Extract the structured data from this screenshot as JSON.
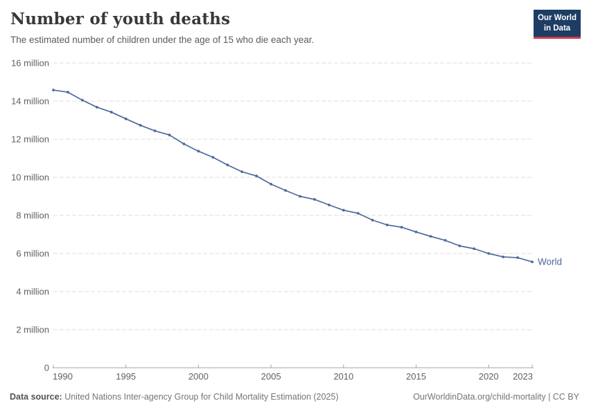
{
  "header": {
    "title": "Number of youth deaths",
    "subtitle": "The estimated number of children under the age of 15 who die each year.",
    "logo": {
      "line1": "Our World",
      "line2": "in Data",
      "bg_color": "#1d3d63",
      "accent_color": "#d13b4b"
    }
  },
  "chart_data": {
    "type": "line",
    "title": "Number of youth deaths",
    "xlabel": "",
    "ylabel": "",
    "unit": "million deaths per year",
    "x": [
      1990,
      1991,
      1992,
      1993,
      1994,
      1995,
      1996,
      1997,
      1998,
      1999,
      2000,
      2001,
      2002,
      2003,
      2004,
      2005,
      2006,
      2007,
      2008,
      2009,
      2010,
      2011,
      2012,
      2013,
      2014,
      2015,
      2016,
      2017,
      2018,
      2019,
      2020,
      2021,
      2022,
      2023
    ],
    "series": [
      {
        "name": "World",
        "color": "#4C6A9C",
        "values_millions": [
          14.58,
          14.47,
          14.05,
          13.68,
          13.42,
          13.07,
          12.73,
          12.44,
          12.22,
          11.75,
          11.37,
          11.05,
          10.65,
          10.29,
          10.07,
          9.64,
          9.31,
          9.0,
          8.84,
          8.55,
          8.27,
          8.11,
          7.75,
          7.5,
          7.38,
          7.13,
          6.9,
          6.69,
          6.4,
          6.25,
          6.0,
          5.82,
          5.78,
          5.56
        ]
      }
    ],
    "xlim": [
      1990,
      2023
    ],
    "ylim_millions": [
      0,
      16
    ],
    "x_ticks": [
      1990,
      1995,
      2000,
      2005,
      2010,
      2015,
      2020,
      2023
    ],
    "y_ticks": [
      {
        "value_millions": 0,
        "label": "0"
      },
      {
        "value_millions": 2,
        "label": "2 million"
      },
      {
        "value_millions": 4,
        "label": "4 million"
      },
      {
        "value_millions": 6,
        "label": "6 million"
      },
      {
        "value_millions": 8,
        "label": "8 million"
      },
      {
        "value_millions": 10,
        "label": "10 million"
      },
      {
        "value_millions": 12,
        "label": "12 million"
      },
      {
        "value_millions": 14,
        "label": "14 million"
      },
      {
        "value_millions": 16,
        "label": "16 million"
      }
    ],
    "grid": "dashed-horizontal",
    "legend_position": "end-of-line",
    "colors": {
      "line": "#4C6A9C",
      "gridline": "#dedede",
      "axis": "#a3a3a3",
      "tick_label": "#606060"
    }
  },
  "footer": {
    "datasource_label": "Data source:",
    "datasource_value": " United Nations Inter-agency Group for Child Mortality Estimation (2025)",
    "link_text": "OurWorldinData.org/child-mortality | CC BY"
  }
}
